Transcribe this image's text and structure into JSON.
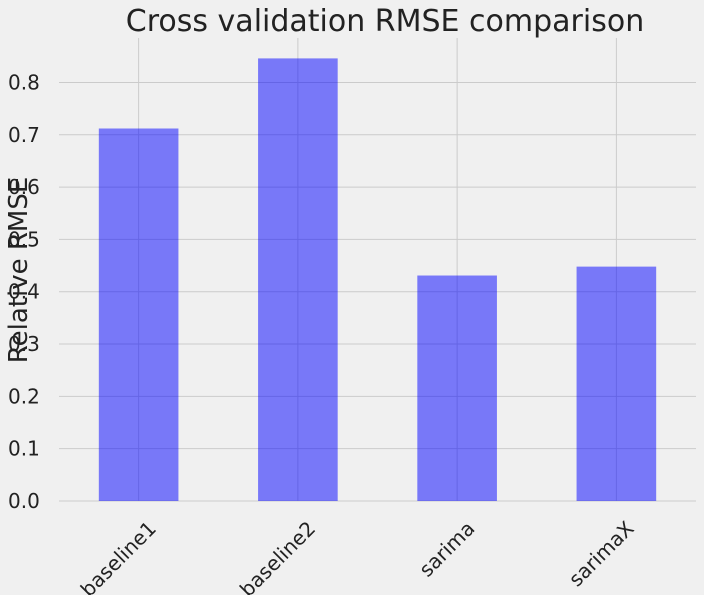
{
  "chart_data": {
    "type": "bar",
    "title": "Cross validation RMSE comparison",
    "xlabel": "",
    "ylabel": "Relative RMSE",
    "categories": [
      "baseline1",
      "baseline2",
      "sarima",
      "sarimaX"
    ],
    "values": [
      0.712,
      0.846,
      0.431,
      0.448
    ],
    "ylim": [
      0,
      0.885
    ],
    "yticks": [
      0.0,
      0.1,
      0.2,
      0.3,
      0.4,
      0.5,
      0.6,
      0.7,
      0.8
    ],
    "ytick_labels": [
      "0.0",
      "0.1",
      "0.2",
      "0.3",
      "0.4",
      "0.5",
      "0.6",
      "0.7",
      "0.8"
    ],
    "grid": true,
    "bar_color": "#0000ff",
    "background_color": "#f0f0f0",
    "grid_color": "#cbcbcb"
  }
}
